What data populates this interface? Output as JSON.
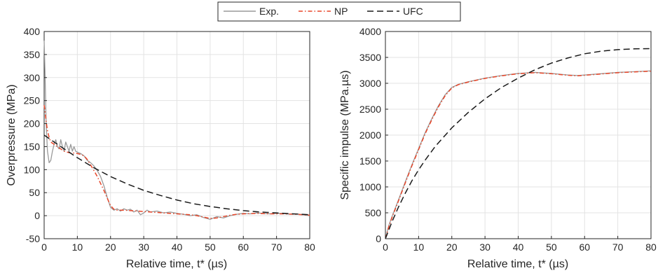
{
  "legend": {
    "placement": "top-center",
    "entries": [
      {
        "label": "Exp.",
        "color": "#9a9a9a",
        "style": "solid"
      },
      {
        "label": "NP",
        "color": "#e8472a",
        "style": "dash-dot"
      },
      {
        "label": "UFC",
        "color": "#1a1a1a",
        "style": "dashed"
      }
    ]
  },
  "chart_data": [
    {
      "type": "line",
      "xlabel": "Relative time, t* (µs)",
      "ylabel": "Overpressure (MPa)",
      "xlim": [
        0,
        80
      ],
      "ylim": [
        -50,
        400
      ],
      "xticks": [
        0,
        10,
        20,
        30,
        40,
        50,
        60,
        70,
        80
      ],
      "yticks": [
        -50,
        0,
        50,
        100,
        150,
        200,
        250,
        300,
        350,
        400
      ],
      "grid": true,
      "series": [
        {
          "name": "Exp.",
          "color": "#9a9a9a",
          "style": "solid",
          "x": [
            0,
            0.3,
            0.6,
            1.0,
            1.5,
            2.0,
            2.5,
            3.0,
            3.5,
            4.0,
            4.5,
            5.0,
            5.5,
            6.0,
            6.5,
            7.0,
            7.5,
            8.0,
            8.5,
            9.0,
            9.5,
            10.0,
            11.0,
            12.0,
            13.0,
            14.0,
            15.0,
            16.0,
            17.0,
            18.0,
            19.0,
            20.0,
            21.0,
            22.0,
            23.0,
            24.0,
            25.0,
            26.0,
            27.0,
            28.0,
            29.0,
            30.0,
            31.0,
            32.0,
            34.0,
            36.0,
            38.0,
            40.0,
            42.0,
            44.0,
            46.0,
            48.0,
            50.0,
            52.0,
            54.0,
            56.0,
            58.0,
            60.0,
            62.0,
            64.0,
            66.0,
            68.0,
            70.0,
            72.0,
            74.0,
            76.0,
            78.0,
            80.0
          ],
          "y": [
            380,
            300,
            200,
            140,
            115,
            120,
            140,
            155,
            165,
            150,
            145,
            165,
            150,
            140,
            160,
            150,
            140,
            155,
            140,
            150,
            140,
            138,
            135,
            130,
            120,
            115,
            108,
            98,
            85,
            65,
            40,
            18,
            12,
            15,
            10,
            15,
            12,
            14,
            8,
            12,
            2,
            6,
            12,
            8,
            10,
            6,
            8,
            5,
            3,
            0,
            2,
            -4,
            -8,
            -2,
            -5,
            0,
            3,
            5,
            4,
            6,
            5,
            4,
            5,
            5,
            3,
            4,
            2,
            0
          ]
        },
        {
          "name": "NP",
          "color": "#e8472a",
          "style": "dash-dot",
          "x": [
            0,
            0.3,
            0.6,
            1.0,
            1.5,
            2.0,
            3.0,
            4.0,
            5.0,
            6.0,
            7.0,
            8.0,
            9.0,
            10.0,
            11.0,
            12.0,
            13.0,
            14.0,
            15.0,
            16.0,
            17.0,
            18.0,
            19.0,
            20.0,
            21.0,
            22.0,
            24.0,
            26.0,
            28.0,
            30.0,
            32.0,
            34.0,
            36.0,
            38.0,
            40.0,
            42.0,
            44.0,
            46.0,
            48.0,
            50.0,
            52.0,
            54.0,
            56.0,
            58.0,
            60.0,
            64.0,
            68.0,
            72.0,
            76.0,
            80.0
          ],
          "y": [
            240,
            225,
            205,
            185,
            170,
            160,
            155,
            150,
            145,
            140,
            138,
            136,
            136,
            135,
            133,
            130,
            122,
            110,
            98,
            85,
            70,
            55,
            38,
            22,
            14,
            12,
            12,
            11,
            10,
            9,
            8,
            7,
            6,
            5,
            4,
            3,
            2,
            0,
            -3,
            -6,
            -5,
            -2,
            1,
            3,
            4,
            5,
            4,
            4,
            3,
            1
          ]
        },
        {
          "name": "UFC",
          "color": "#1a1a1a",
          "style": "dashed",
          "x": [
            0,
            5,
            10,
            15,
            20,
            25,
            30,
            35,
            40,
            45,
            50,
            55,
            60,
            65,
            70,
            75,
            80
          ],
          "y": [
            175,
            150,
            126,
            104,
            85,
            69,
            55,
            44,
            34,
            26,
            20,
            15,
            11,
            8,
            6,
            4,
            2
          ]
        }
      ]
    },
    {
      "type": "line",
      "xlabel": "Relative time, t* (µs)",
      "ylabel": "Specific impulse (MPa.µs)",
      "xlim": [
        0,
        80
      ],
      "ylim": [
        0,
        4000
      ],
      "xticks": [
        0,
        10,
        20,
        30,
        40,
        50,
        60,
        70,
        80
      ],
      "yticks": [
        0,
        500,
        1000,
        1500,
        2000,
        2500,
        3000,
        3500,
        4000
      ],
      "grid": true,
      "series": [
        {
          "name": "Exp.",
          "color": "#9a9a9a",
          "style": "solid",
          "x": [
            0,
            1,
            2,
            4,
            6,
            8,
            10,
            12,
            14,
            16,
            18,
            20,
            22,
            25,
            30,
            35,
            40,
            45,
            50,
            55,
            58,
            62,
            66,
            70,
            75,
            80
          ],
          "y": [
            0,
            250,
            430,
            760,
            1100,
            1430,
            1740,
            2050,
            2320,
            2570,
            2780,
            2920,
            2980,
            3030,
            3100,
            3150,
            3190,
            3210,
            3190,
            3160,
            3150,
            3170,
            3190,
            3210,
            3225,
            3240
          ]
        },
        {
          "name": "NP",
          "color": "#e8472a",
          "style": "dash-dot",
          "x": [
            0,
            1,
            2,
            4,
            6,
            8,
            10,
            12,
            14,
            16,
            18,
            20,
            22,
            25,
            30,
            35,
            40,
            45,
            50,
            55,
            58,
            62,
            66,
            70,
            75,
            80
          ],
          "y": [
            0,
            230,
            410,
            740,
            1080,
            1410,
            1720,
            2030,
            2300,
            2550,
            2760,
            2910,
            2975,
            3025,
            3095,
            3145,
            3185,
            3205,
            3185,
            3155,
            3145,
            3165,
            3185,
            3205,
            3220,
            3235
          ]
        },
        {
          "name": "UFC",
          "color": "#1a1a1a",
          "style": "dashed",
          "x": [
            0,
            2,
            4,
            6,
            8,
            10,
            12,
            15,
            20,
            25,
            30,
            35,
            40,
            45,
            50,
            55,
            60,
            65,
            70,
            75,
            80
          ],
          "y": [
            0,
            330,
            620,
            880,
            1120,
            1330,
            1520,
            1780,
            2140,
            2440,
            2700,
            2920,
            3100,
            3260,
            3390,
            3490,
            3570,
            3620,
            3650,
            3665,
            3670
          ]
        }
      ]
    }
  ]
}
